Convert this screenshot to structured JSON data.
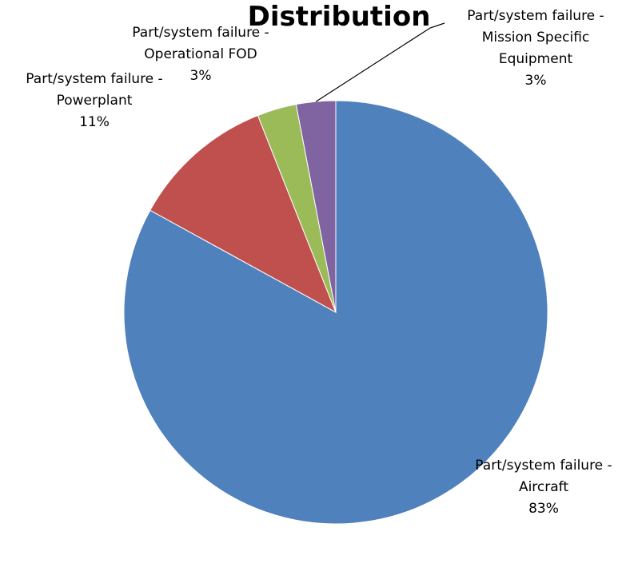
{
  "chart_data": {
    "type": "pie",
    "title": "Distribution",
    "series": [
      {
        "values": [
          83,
          11,
          3,
          3
        ]
      }
    ],
    "slices": [
      {
        "lines": [
          "Part/system failure -",
          "Aircraft"
        ],
        "percent_label": "83%",
        "value": 83,
        "color": "#4F81BD"
      },
      {
        "lines": [
          "Part/system failure -",
          "Powerplant"
        ],
        "percent_label": "11%",
        "value": 11,
        "color": "#C0504D"
      },
      {
        "lines": [
          "Part/system failure -",
          "Operational FOD"
        ],
        "percent_label": "3%",
        "value": 3,
        "color": "#9BBB59"
      },
      {
        "lines": [
          "Part/system failure -",
          "Mission Specific",
          "Equipment"
        ],
        "percent_label": "3%",
        "value": 3,
        "color": "#8064A2"
      }
    ],
    "legend": "none",
    "data_labels": "outside-end with leader line"
  }
}
